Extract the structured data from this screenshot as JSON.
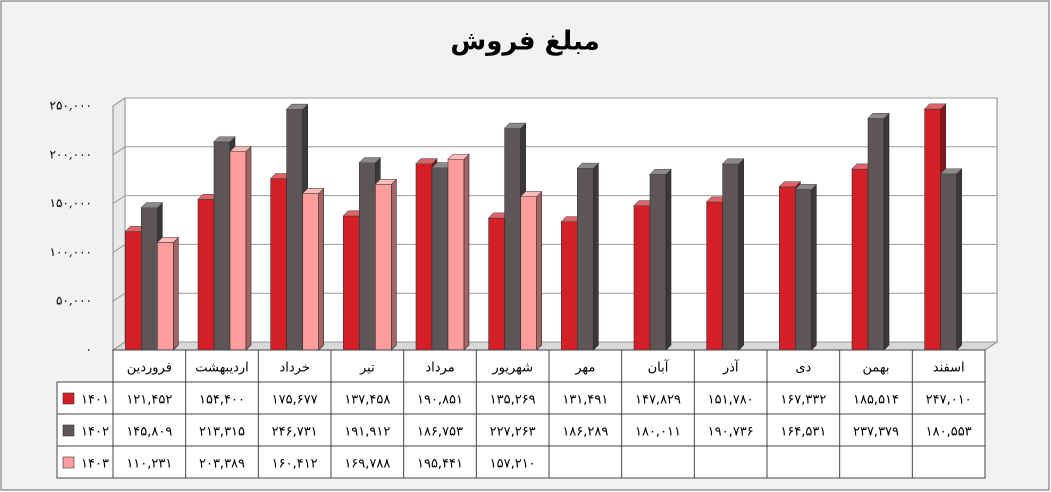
{
  "chart_data": {
    "type": "bar3d",
    "title": "مبلغ فروش",
    "categories": [
      "فروردین",
      "اردیبهشت",
      "خرداد",
      "تیر",
      "مرداد",
      "شهریور",
      "مهر",
      "آبان",
      "آذر",
      "دی",
      "بهمن",
      "اسفند"
    ],
    "series": [
      {
        "name": "۱۴۰۱",
        "color": "#d41f26",
        "values": [
          121452,
          154400,
          175677,
          137458,
          190851,
          135269,
          131491,
          147829,
          151780,
          167332,
          185514,
          247010
        ],
        "value_labels": [
          "۱۲۱,۴۵۲",
          "۱۵۴,۴۰۰",
          "۱۷۵,۶۷۷",
          "۱۳۷,۴۵۸",
          "۱۹۰,۸۵۱",
          "۱۳۵,۲۶۹",
          "۱۳۱,۴۹۱",
          "۱۴۷,۸۲۹",
          "۱۵۱,۷۸۰",
          "۱۶۷,۳۳۲",
          "۱۸۵,۵۱۴",
          "۲۴۷,۰۱۰"
        ]
      },
      {
        "name": "۱۴۰۲",
        "color": "#5e5656",
        "values": [
          145809,
          213315,
          246731,
          191912,
          186753,
          227263,
          186289,
          180011,
          190736,
          164531,
          237379,
          180553
        ],
        "value_labels": [
          "۱۴۵,۸۰۹",
          "۲۱۳,۳۱۵",
          "۲۴۶,۷۳۱",
          "۱۹۱,۹۱۲",
          "۱۸۶,۷۵۳",
          "۲۲۷,۲۶۳",
          "۱۸۶,۲۸۹",
          "۱۸۰,۰۱۱",
          "۱۹۰,۷۳۶",
          "۱۶۴,۵۳۱",
          "۲۳۷,۳۷۹",
          "۱۸۰,۵۵۳"
        ]
      },
      {
        "name": "۱۴۰۳",
        "color": "#ff9c9c",
        "values": [
          110231,
          203389,
          160412,
          169788,
          195441,
          157210,
          null,
          null,
          null,
          null,
          null,
          null
        ],
        "value_labels": [
          "۱۱۰,۲۳۱",
          "۲۰۳,۳۸۹",
          "۱۶۰,۴۱۲",
          "۱۶۹,۷۸۸",
          "۱۹۵,۴۴۱",
          "۱۵۷,۲۱۰",
          null,
          null,
          null,
          null,
          null,
          null
        ]
      }
    ],
    "ylim": [
      0,
      250000
    ],
    "yticks": [
      {
        "value": 0,
        "label": "۰"
      },
      {
        "value": 50000,
        "label": "۵۰,۰۰۰"
      },
      {
        "value": 100000,
        "label": "۱۰۰,۰۰۰"
      },
      {
        "value": 150000,
        "label": "۱۵۰,۰۰۰"
      },
      {
        "value": 200000,
        "label": "۲۰۰,۰۰۰"
      },
      {
        "value": 250000,
        "label": "۲۵۰,۰۰۰"
      }
    ],
    "grid": true
  }
}
